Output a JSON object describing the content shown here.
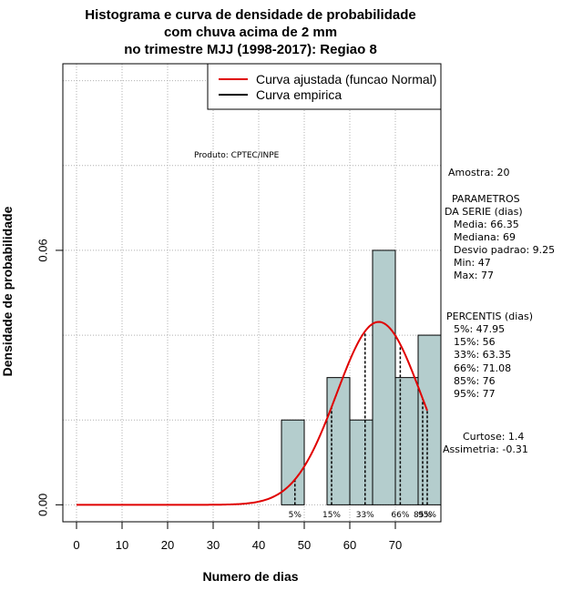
{
  "chart_data": {
    "type": "histogram",
    "title_lines": [
      "Histograma e curva de densidade de probabilidade",
      "com chuva acima de 2 mm",
      "no trimestre MJJ (1998-2017): Regiao 8"
    ],
    "xlabel": "Numero de dias",
    "ylabel": "Densidade de probabilidade",
    "xlim": [
      -3,
      80
    ],
    "ylim": [
      -0.004,
      0.104
    ],
    "x_ticks": [
      0,
      10,
      20,
      30,
      40,
      50,
      60,
      70
    ],
    "x_tick_labels": [
      "0",
      "10",
      "20",
      "30",
      "40",
      "50",
      "60",
      "70"
    ],
    "y_ticks": [
      0.0,
      0.06
    ],
    "y_tick_labels": [
      "0.00",
      "0.06"
    ],
    "grid_x": [
      0,
      10,
      20,
      30,
      40,
      50,
      60,
      70
    ],
    "grid_y": [
      0.0,
      0.02,
      0.04,
      0.06,
      0.08,
      0.1
    ],
    "bins": [
      {
        "x0": 45,
        "x1": 50,
        "density": 0.02
      },
      {
        "x0": 50,
        "x1": 55,
        "density": 0.0
      },
      {
        "x0": 55,
        "x1": 60,
        "density": 0.03
      },
      {
        "x0": 60,
        "x1": 65,
        "density": 0.02
      },
      {
        "x0": 65,
        "x1": 70,
        "density": 0.06
      },
      {
        "x0": 70,
        "x1": 75,
        "density": 0.03
      },
      {
        "x0": 75,
        "x1": 80,
        "density": 0.04
      }
    ],
    "bar_color": "#b4cdcd",
    "fitted_curve": {
      "name": "Curva ajustada (funcao Normal)",
      "mean": 66.35,
      "sd": 9.25,
      "x_from": 0,
      "x_to": 77,
      "color": "#e00000"
    },
    "empirical_curve": {
      "name": "Curva empirica",
      "color": "#000000"
    },
    "percentile_lines": [
      {
        "label": "5%",
        "x": 47.95
      },
      {
        "label": "15%",
        "x": 56
      },
      {
        "label": "33%",
        "x": 63.35
      },
      {
        "label": "66%",
        "x": 71.08
      },
      {
        "label": "85%",
        "x": 76
      },
      {
        "label": "95%",
        "x": 77
      }
    ],
    "legend": {
      "placement": "top-right",
      "entries": [
        {
          "label": "Curva ajustada (funcao Normal)",
          "color": "#e00000"
        },
        {
          "label": "Curva empirica",
          "color": "#000000"
        }
      ]
    },
    "producer": "Produto: CPTEC/INPE"
  },
  "stats": {
    "sample": "Amostra: 20",
    "params_title_1": "PARAMETROS",
    "params_title_2": "DA SERIE (dias)",
    "params": [
      "Media: 66.35",
      "Mediana: 69",
      "Desvio padrao: 9.25",
      "Min: 47",
      "Max: 77"
    ],
    "percentis_title": "PERCENTIS (dias)",
    "percentis": [
      "5%: 47.95",
      "15%: 56",
      "33%: 63.35",
      "66%: 71.08",
      "85%: 76",
      "95%: 77"
    ],
    "curtose": "Curtose: 1.4",
    "assimetria": "Assimetria: -0.31"
  }
}
